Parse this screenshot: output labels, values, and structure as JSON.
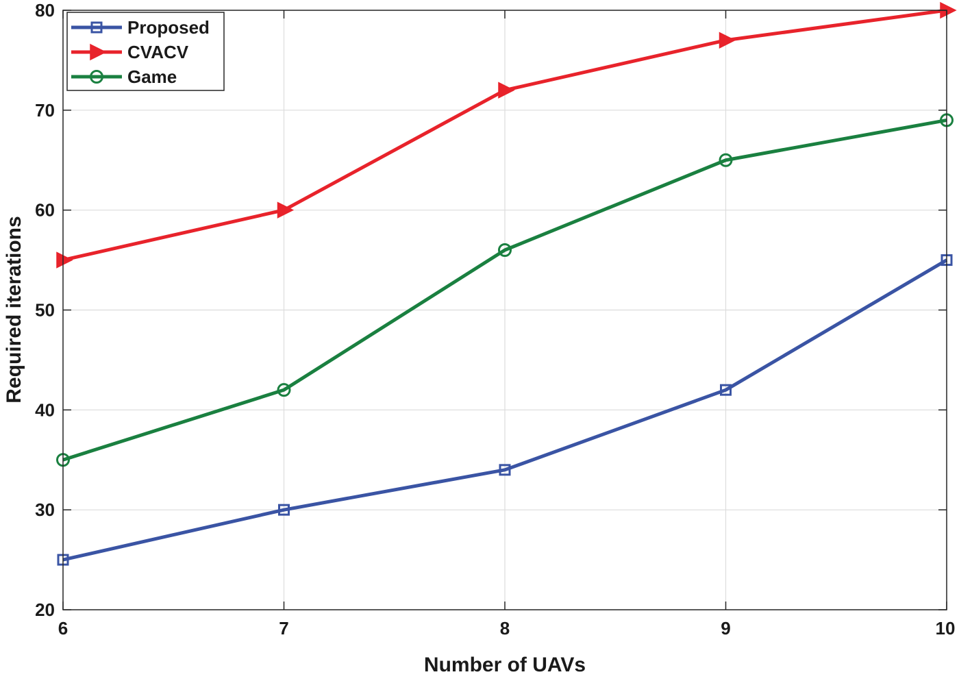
{
  "chart_data": {
    "type": "line",
    "title": "",
    "xlabel": "Number of UAVs",
    "ylabel": "Required iterations",
    "x": [
      6,
      7,
      8,
      9,
      10
    ],
    "xticks": [
      "6",
      "7",
      "8",
      "9",
      "10"
    ],
    "yticks": [
      "20",
      "30",
      "40",
      "50",
      "60",
      "70",
      "80"
    ],
    "xlim": [
      6,
      10
    ],
    "ylim": [
      20,
      80
    ],
    "grid": true,
    "legend_position": "top-left",
    "series": [
      {
        "name": "Proposed",
        "color": "#3a54a4",
        "marker": "square",
        "values": [
          25,
          30,
          34,
          42,
          55
        ]
      },
      {
        "name": "CVACV",
        "color": "#e8232b",
        "marker": "triangle-right",
        "values": [
          55,
          60,
          72,
          77,
          80
        ]
      },
      {
        "name": "Game",
        "color": "#1a8040",
        "marker": "circle",
        "values": [
          35,
          42,
          56,
          65,
          69
        ]
      }
    ]
  }
}
